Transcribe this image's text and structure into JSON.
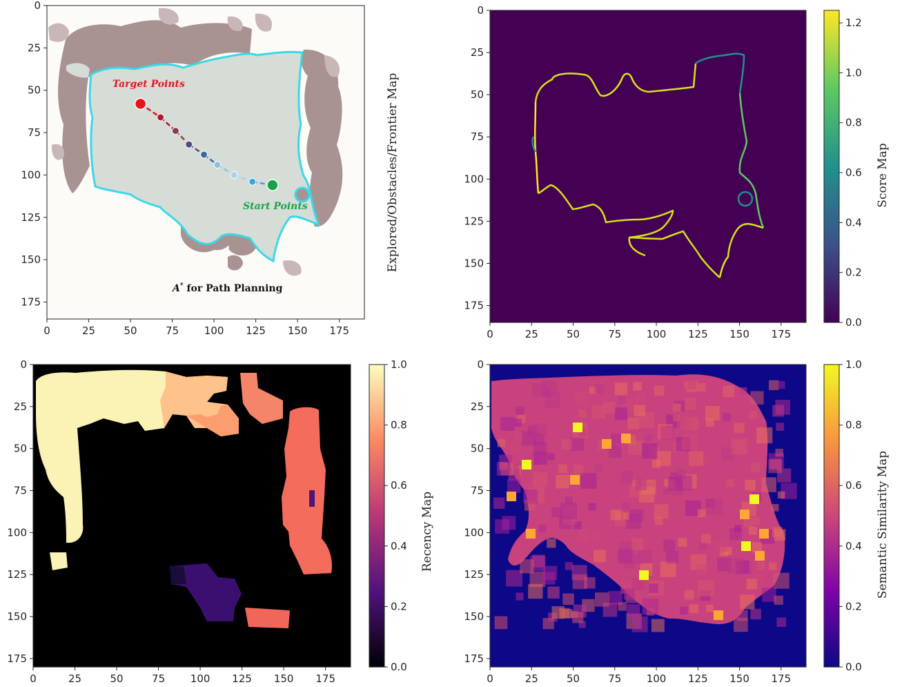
{
  "chart_data": [
    {
      "id": "explored",
      "type": "heatmap",
      "ylabel_right": "Explored/Obstacles/Frontier Map",
      "xlim": [
        0,
        190
      ],
      "ylim": [
        0,
        185
      ],
      "xticks": [
        0,
        25,
        50,
        75,
        100,
        125,
        150,
        175
      ],
      "yticks": [
        0,
        25,
        50,
        75,
        100,
        125,
        150,
        175
      ],
      "path": {
        "points": [
          [
            56,
            58
          ],
          [
            68,
            66
          ],
          [
            77,
            74
          ],
          [
            85,
            82
          ],
          [
            94,
            88
          ],
          [
            102,
            94
          ],
          [
            112,
            100
          ],
          [
            123,
            104
          ],
          [
            135,
            106
          ]
        ],
        "colors": [
          "#e8141c",
          "#b01630",
          "#8a3a55",
          "#4e4a7a",
          "#3a6a9a",
          "#8ec0e0",
          "#a8d4ee",
          "#3aa8dc",
          "#1aa24b"
        ]
      },
      "annotations": {
        "target": "Target Points",
        "start": "Start Points",
        "astar_symbol": "A",
        "astar_sup": "*",
        "astar_text": " for Path Planning"
      }
    },
    {
      "id": "score",
      "type": "heatmap",
      "colorbar_label": "Score Map",
      "xlim": [
        0,
        190
      ],
      "ylim": [
        0,
        185
      ],
      "xticks": [
        0,
        25,
        50,
        75,
        100,
        125,
        150,
        175
      ],
      "yticks": [
        0,
        25,
        50,
        75,
        100,
        125,
        150,
        175
      ],
      "colorbar_range": [
        0,
        1.25
      ],
      "colorbar_ticks": [
        "0.0",
        "0.2",
        "0.4",
        "0.6",
        "0.8",
        "1.0",
        "1.2"
      ],
      "colorbar_tick_values": [
        0,
        0.2,
        0.4,
        0.6,
        0.8,
        1.0,
        1.2
      ]
    },
    {
      "id": "recency",
      "type": "heatmap",
      "colorbar_label": "Recency Map",
      "xlim": [
        0,
        190
      ],
      "ylim": [
        0,
        180
      ],
      "xticks": [
        0,
        25,
        50,
        75,
        100,
        125,
        150,
        175
      ],
      "yticks": [
        0,
        25,
        50,
        75,
        100,
        125,
        150,
        175
      ],
      "colorbar_range": [
        0,
        1.0
      ],
      "colorbar_ticks": [
        "0.0",
        "0.2",
        "0.4",
        "0.6",
        "0.8",
        "1.0"
      ],
      "colorbar_tick_values": [
        0,
        0.2,
        0.4,
        0.6,
        0.8,
        1.0
      ]
    },
    {
      "id": "semantic",
      "type": "heatmap",
      "colorbar_label": "Semantic Similarity Map",
      "xlim": [
        0,
        190
      ],
      "ylim": [
        0,
        180
      ],
      "xticks": [
        0,
        25,
        50,
        75,
        100,
        125,
        150,
        175
      ],
      "yticks": [
        0,
        25,
        50,
        75,
        100,
        125,
        150,
        175
      ],
      "colorbar_range": [
        0,
        1.0
      ],
      "colorbar_ticks": [
        "0.0",
        "0.2",
        "0.4",
        "0.6",
        "0.8",
        "1.0"
      ],
      "colorbar_tick_values": [
        0,
        0.2,
        0.4,
        0.6,
        0.8,
        1.0
      ]
    }
  ],
  "colors": {
    "explored_bg": "#fcfbf7",
    "explored_free": "#d6dcd6",
    "obstacle": "#a89292",
    "obstacle_light": "#c9b6b6",
    "frontier": "#3ad8e8",
    "viridis_bg": "#440154",
    "recency_bg": "#000000",
    "plasma_bg": "#0d0887"
  }
}
